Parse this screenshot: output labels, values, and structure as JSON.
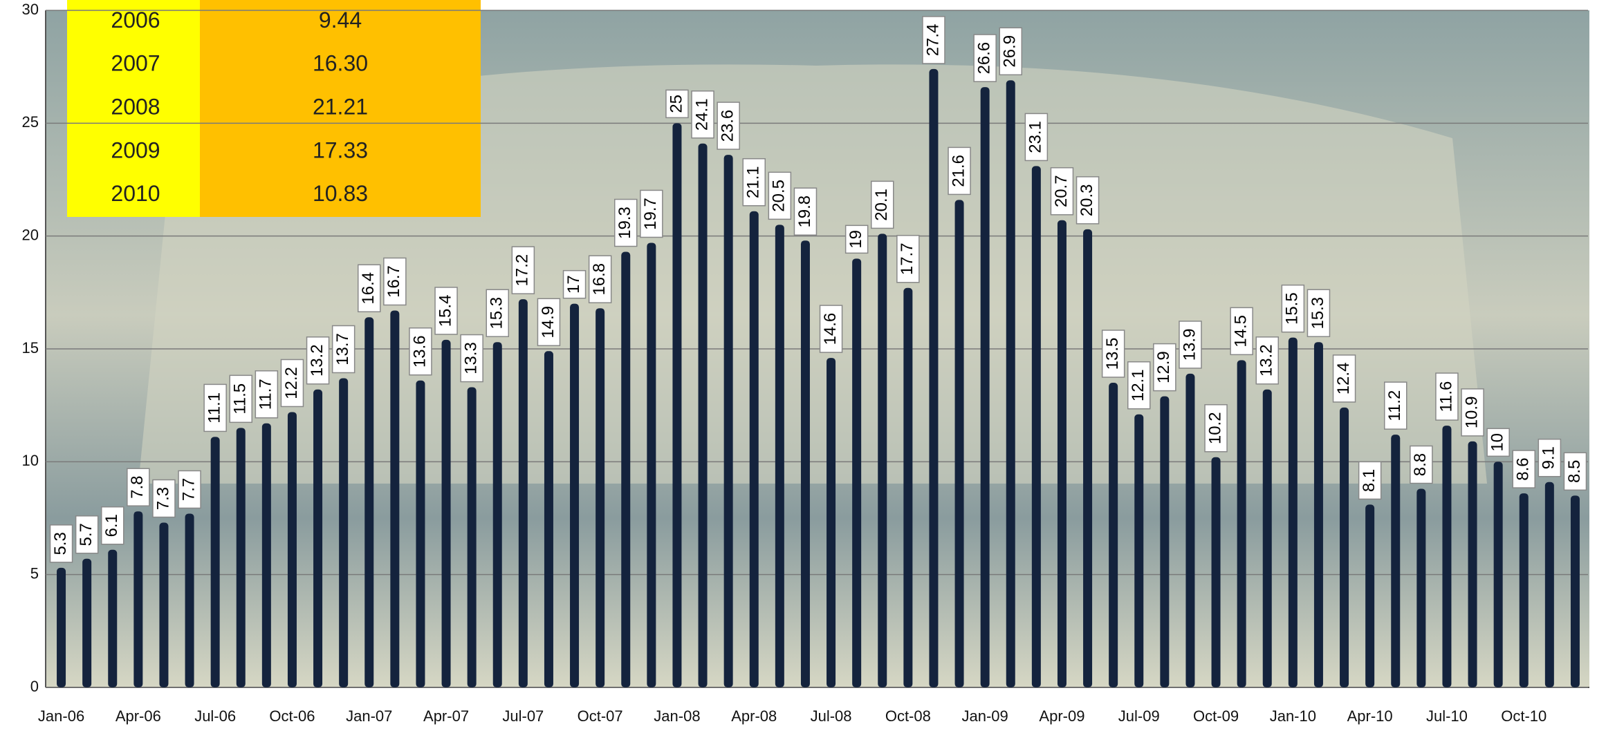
{
  "chart_data": {
    "type": "bar",
    "categories": [
      "Jan-06",
      null,
      null,
      "Apr-06",
      null,
      null,
      "Jul-06",
      null,
      null,
      "Oct-06",
      null,
      null,
      "Jan-07",
      null,
      null,
      "Apr-07",
      null,
      null,
      "Jul-07",
      null,
      null,
      "Oct-07",
      null,
      null,
      "Jan-08",
      null,
      null,
      "Apr-08",
      null,
      null,
      "Jul-08",
      null,
      null,
      "Oct-08",
      null,
      null,
      "Jan-09",
      null,
      null,
      "Apr-09",
      null,
      null,
      "Jul-09",
      null,
      null,
      "Oct-09",
      null,
      null,
      "Jan-10",
      null,
      null,
      "Apr-10",
      null,
      null,
      "Jul-10",
      null,
      null,
      "Oct-10",
      null,
      null
    ],
    "values": [
      5.3,
      5.7,
      6.1,
      7.8,
      7.3,
      7.7,
      11.1,
      11.5,
      11.7,
      12.2,
      13.2,
      13.7,
      16.4,
      16.7,
      13.6,
      15.4,
      13.3,
      15.3,
      17.2,
      14.9,
      17,
      16.8,
      19.3,
      19.7,
      25,
      24.1,
      23.6,
      21.1,
      20.5,
      19.8,
      14.6,
      19,
      20.1,
      17.7,
      27.4,
      21.6,
      26.6,
      26.9,
      23.1,
      20.7,
      20.3,
      13.5,
      12.1,
      12.9,
      13.9,
      10.2,
      14.5,
      13.2,
      15.5,
      15.3,
      12.4,
      8.1,
      11.2,
      8.8,
      11.6,
      10.9,
      10,
      8.6,
      9.1,
      8.5
    ],
    "color": "#14233d",
    "ylim": [
      0,
      30
    ],
    "yticks": [
      0,
      5,
      10,
      15,
      20,
      25,
      30
    ],
    "grid": true
  },
  "table": {
    "rows": [
      [
        "2006",
        "9.44"
      ],
      [
        "2007",
        "16.30"
      ],
      [
        "2008",
        "21.21"
      ],
      [
        "2009",
        "17.33"
      ],
      [
        "2010",
        "10.83"
      ]
    ]
  }
}
